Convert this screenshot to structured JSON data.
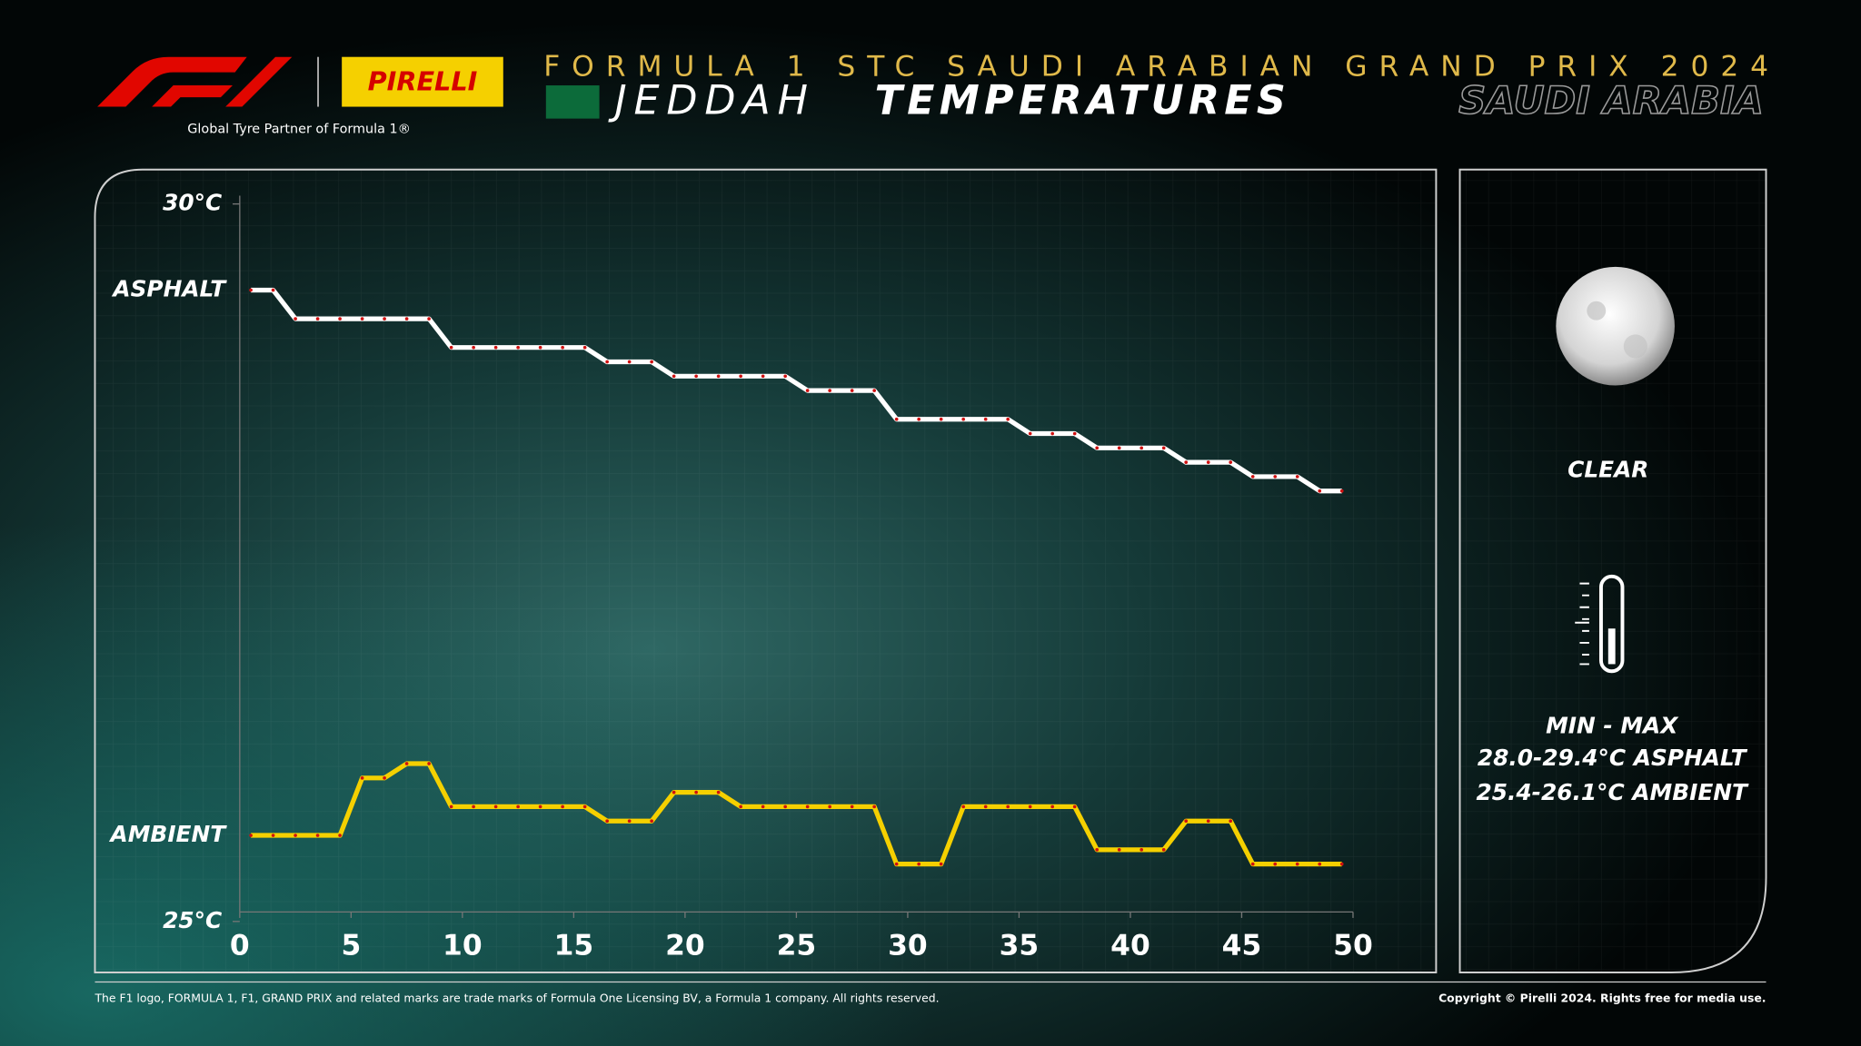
{
  "header": {
    "event": "FORMULA 1 STC SAUDI ARABIAN GRAND PRIX 2024",
    "city": "JEDDAH",
    "title": "TEMPERATURES",
    "country": "SAUDI ARABIA",
    "sponsor_logo": "PIRELLI",
    "partner": "Global Tyre Partner of Formula 1®"
  },
  "chart_data": {
    "type": "line",
    "x": [
      0.5,
      1.5,
      2.5,
      3.5,
      4.5,
      5.5,
      6.5,
      7.5,
      8.5,
      9.5,
      10.5,
      11.5,
      12.5,
      13.5,
      14.5,
      15.5,
      16.5,
      17.5,
      18.5,
      19.5,
      20.5,
      21.5,
      22.5,
      23.5,
      24.5,
      25.5,
      26.5,
      27.5,
      28.5,
      29.5,
      30.5,
      31.5,
      32.5,
      33.5,
      34.5,
      35.5,
      36.5,
      37.5,
      38.5,
      39.5,
      40.5,
      41.5,
      42.5,
      43.5,
      44.5,
      45.5,
      46.5,
      47.5,
      48.5,
      49.5
    ],
    "series": [
      {
        "name": "ASPHALT",
        "color": "#ffffff",
        "values": [
          29.4,
          29.4,
          29.2,
          29.2,
          29.2,
          29.2,
          29.2,
          29.2,
          29.2,
          29.0,
          29.0,
          29.0,
          29.0,
          29.0,
          29.0,
          29.0,
          28.9,
          28.9,
          28.9,
          28.8,
          28.8,
          28.8,
          28.8,
          28.8,
          28.8,
          28.7,
          28.7,
          28.7,
          28.7,
          28.5,
          28.5,
          28.5,
          28.5,
          28.5,
          28.5,
          28.4,
          28.4,
          28.4,
          28.3,
          28.3,
          28.3,
          28.3,
          28.2,
          28.2,
          28.2,
          28.1,
          28.1,
          28.1,
          28.0,
          28.0
        ]
      },
      {
        "name": "AMBIENT",
        "color": "#f5d000",
        "values": [
          25.6,
          25.6,
          25.6,
          25.6,
          25.6,
          26.0,
          26.0,
          26.1,
          26.1,
          25.8,
          25.8,
          25.8,
          25.8,
          25.8,
          25.8,
          25.8,
          25.7,
          25.7,
          25.7,
          25.9,
          25.9,
          25.9,
          25.8,
          25.8,
          25.8,
          25.8,
          25.8,
          25.8,
          25.8,
          25.4,
          25.4,
          25.4,
          25.8,
          25.8,
          25.8,
          25.8,
          25.8,
          25.8,
          25.5,
          25.5,
          25.5,
          25.5,
          25.7,
          25.7,
          25.7,
          25.4,
          25.4,
          25.4,
          25.4,
          25.4
        ]
      }
    ],
    "xlim": [
      0,
      50
    ],
    "xticks": [
      0,
      5,
      10,
      15,
      20,
      25,
      30,
      35,
      40,
      45,
      50
    ],
    "ylim": [
      25,
      30
    ],
    "yticks": [
      {
        "value": 25,
        "label": "25°C"
      },
      {
        "value": 30,
        "label": "30°C"
      }
    ]
  },
  "side_panel": {
    "condition": "CLEAR",
    "range_title": "MIN  -  MAX",
    "asphalt_range": "28.0-29.4°C ASPHALT",
    "ambient_range": "25.4-26.1°C AMBIENT"
  },
  "footer": {
    "disclaimer": "The F1 logo, FORMULA 1, F1, GRAND PRIX and related marks are trade marks of Formula One Licensing BV, a Formula 1 company. All rights reserved.",
    "copyright": "Copyright © Pirelli 2024. Rights free for media use."
  }
}
